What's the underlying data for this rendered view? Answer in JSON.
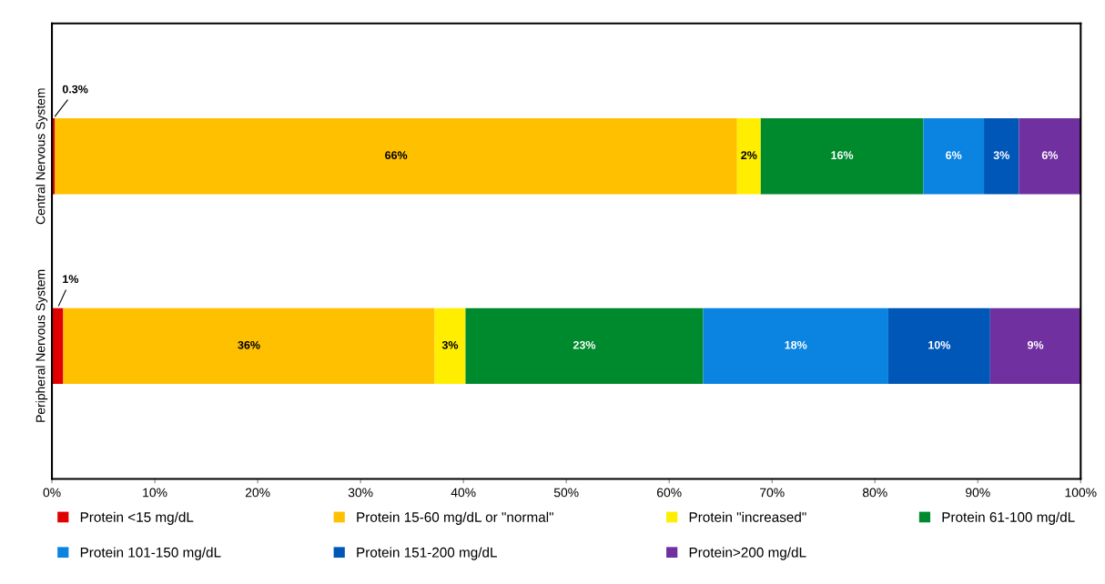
{
  "chart_data": {
    "type": "bar",
    "orientation": "horizontal",
    "stacked": true,
    "categories": [
      "Central Nervous System",
      "Peripheral Nervous System"
    ],
    "series": [
      {
        "name": "Protein <15 mg/dL",
        "color": "#e00000",
        "values": [
          0.3,
          1.1
        ],
        "value_labels": [
          "0.3%",
          "1%"
        ]
      },
      {
        "name": "Protein 15-60 mg/dL or \"normal\"",
        "color": "#ffc000",
        "values": [
          66.3,
          36.1
        ],
        "value_labels": [
          "66%",
          "36%"
        ]
      },
      {
        "name": "Protein \"increased\"",
        "color": "#ffee00",
        "values": [
          2.3,
          3.0
        ],
        "value_labels": [
          "2%",
          "3%"
        ]
      },
      {
        "name": "Protein 61-100 mg/dL",
        "color": "#008a2e",
        "values": [
          15.8,
          23.1
        ],
        "value_labels": [
          "16%",
          "23%"
        ]
      },
      {
        "name": "Protein 101-150 mg/dL",
        "color": "#0a84e0",
        "values": [
          5.9,
          18.0
        ],
        "value_labels": [
          "6%",
          "18%"
        ]
      },
      {
        "name": "Protein 151-200 mg/dL",
        "color": "#0057b8",
        "values": [
          3.4,
          9.9
        ],
        "value_labels": [
          "3%",
          "10%"
        ]
      },
      {
        "name": "Protein>200 mg/dL",
        "color": "#7030a0",
        "values": [
          6.0,
          8.8
        ],
        "value_labels": [
          "6%",
          "9%"
        ]
      }
    ],
    "xlim": [
      0,
      100
    ],
    "xticks": [
      {
        "value": 0,
        "label": "0%"
      },
      {
        "value": 10,
        "label": "10%"
      },
      {
        "value": 20,
        "label": "20%"
      },
      {
        "value": 30,
        "label": "30%"
      },
      {
        "value": 40,
        "label": "40%"
      },
      {
        "value": 50,
        "label": "50%"
      },
      {
        "value": 60,
        "label": "60%"
      },
      {
        "value": 70,
        "label": "70%"
      },
      {
        "value": 80,
        "label": "80%"
      },
      {
        "value": 90,
        "label": "90%"
      },
      {
        "value": 100,
        "label": "100%"
      }
    ],
    "grid": false,
    "legend": "bottom"
  }
}
